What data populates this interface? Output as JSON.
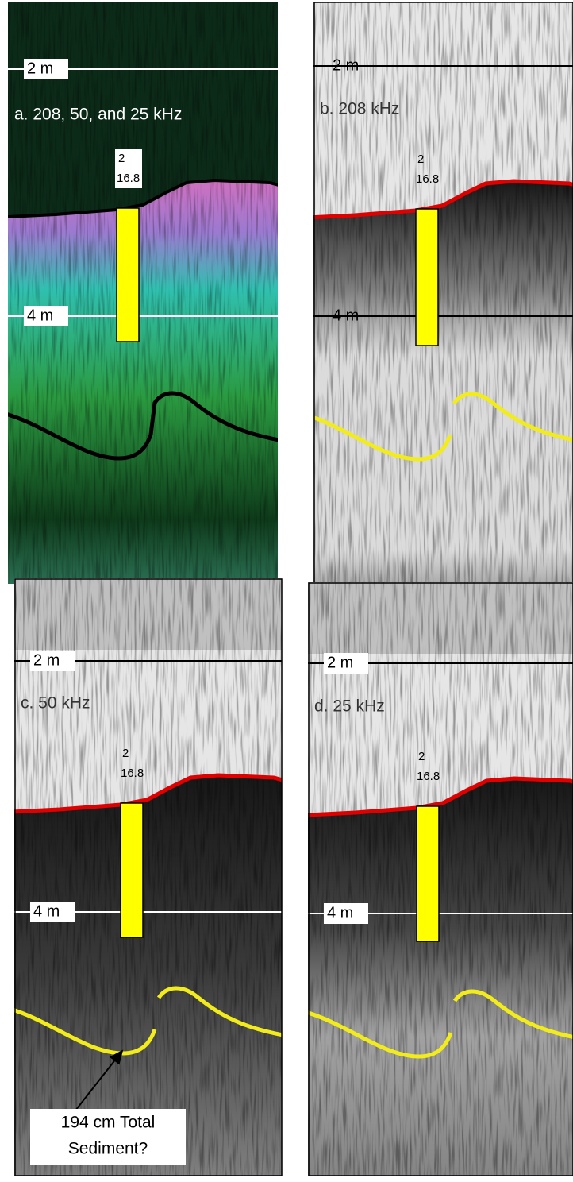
{
  "panels": [
    {
      "label": "a. 208, 50, and 25 kHz",
      "depth_labels": [
        "2 m",
        "4 m"
      ],
      "core_labels": [
        "2",
        "16.8"
      ]
    },
    {
      "label": "b. 208 kHz",
      "depth_labels": [
        "2 m",
        "4 m"
      ],
      "core_labels": [
        "2",
        "16.8"
      ]
    },
    {
      "label": "c. 50 kHz",
      "depth_labels": [
        "2 m",
        "4 m"
      ],
      "core_labels": [
        "2",
        "16.8"
      ]
    },
    {
      "label": "d. 25 kHz",
      "depth_labels": [
        "2 m",
        "4 m"
      ],
      "core_labels": [
        "2",
        "16.8"
      ]
    }
  ],
  "annotation": {
    "lines": [
      "194 cm Total",
      "Sediment?"
    ]
  }
}
